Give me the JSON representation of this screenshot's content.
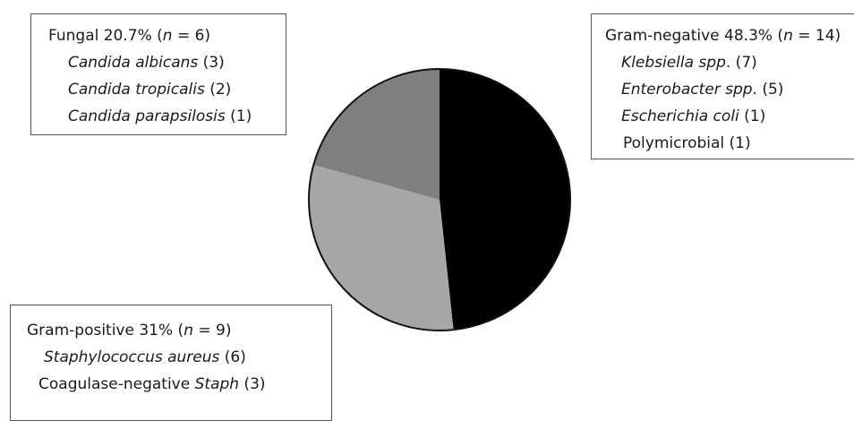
{
  "chart_data": {
    "type": "pie",
    "slices": [
      {
        "label": "Gram-negative",
        "percent": 48.3,
        "n": 14,
        "color": "#000000"
      },
      {
        "label": "Gram-positive",
        "percent": 31,
        "n": 9,
        "color": "#a6a6a6"
      },
      {
        "label": "Fungal",
        "percent": 20.7,
        "n": 6,
        "color": "#7f7f7f"
      }
    ]
  },
  "legends": {
    "fungal": {
      "header": {
        "name": "Fungal 20.7% (",
        "n_symbol": "n",
        "n_rest": " = 6)"
      },
      "items": [
        {
          "name": "Candida albicans",
          "count": " (3)"
        },
        {
          "name": "Candida tropicalis",
          "count": " (2)"
        },
        {
          "name": "Candida parapsilosis",
          "count": " (1)"
        }
      ]
    },
    "gram_negative": {
      "header": {
        "name": "Gram-negative 48.3% (",
        "n_symbol": "n",
        "n_rest": " = 14)"
      },
      "items": [
        {
          "name": "Klebsiella spp",
          "count": ". (7)"
        },
        {
          "name": "Enterobacter spp",
          "count": ". (5)"
        },
        {
          "name": "Escherichia coli",
          "count": " (1)"
        },
        {
          "plain": "Polymicrobial (1)"
        }
      ]
    },
    "gram_positive": {
      "header": {
        "name": "Gram-positive 31% (",
        "n_symbol": "n",
        "n_rest": " = 9)"
      },
      "items": [
        {
          "name": "Staphylococcus aureus",
          "count": " (6)"
        },
        {
          "prefix": "Coagulase-negative ",
          "name": "Staph",
          "count": " (3)"
        }
      ]
    }
  }
}
